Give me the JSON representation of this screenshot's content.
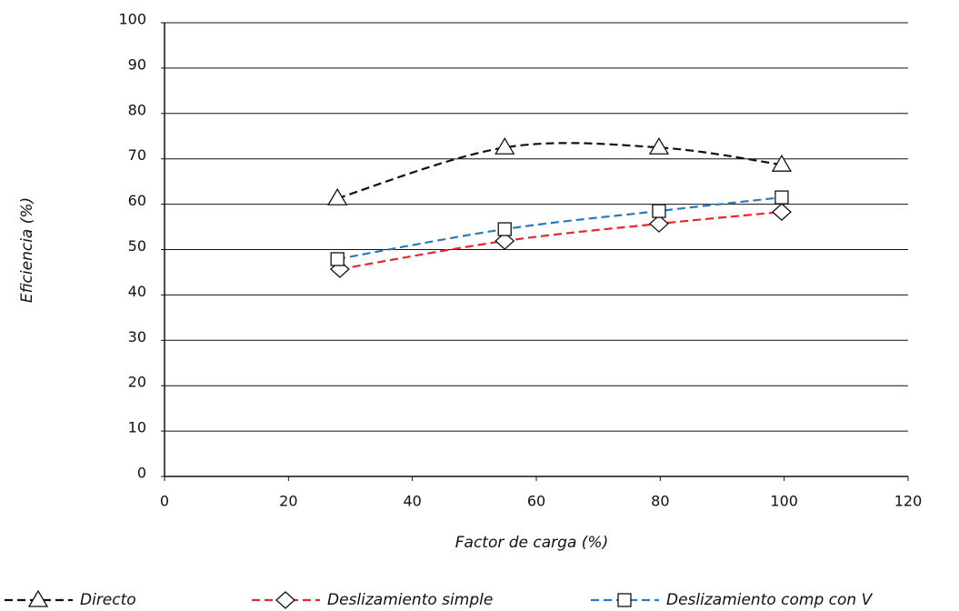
{
  "chart_data": {
    "type": "line",
    "y_label": "Eficiencia (%)",
    "x_label": "Factor de carga (%)",
    "xlim": [
      0,
      120
    ],
    "xticks": [
      0,
      20,
      40,
      60,
      80,
      100,
      120
    ],
    "ylim": [
      0,
      100
    ],
    "yticks": [
      0,
      10,
      20,
      30,
      40,
      50,
      60,
      70,
      80,
      90,
      100
    ],
    "grid": true,
    "legend": "bottom",
    "series": [
      {
        "name": "Directo",
        "color": "#111111",
        "marker": "triangle",
        "x": [
          27.9,
          54.9,
          79.8,
          99.6
        ],
        "values": [
          61.3,
          72.5,
          72.5,
          68.7
        ]
      },
      {
        "name": "Deslizamiento simple",
        "color": "#e8262c",
        "marker": "diamond",
        "x": [
          28.3,
          54.9,
          79.8,
          99.6
        ],
        "values": [
          45.7,
          51.9,
          55.7,
          58.3
        ]
      },
      {
        "name": "Deslizamiento comp con V",
        "color": "#2a7abf",
        "marker": "square",
        "x": [
          27.9,
          54.9,
          79.8,
          99.6
        ],
        "values": [
          47.9,
          54.5,
          58.5,
          61.5
        ]
      }
    ]
  }
}
